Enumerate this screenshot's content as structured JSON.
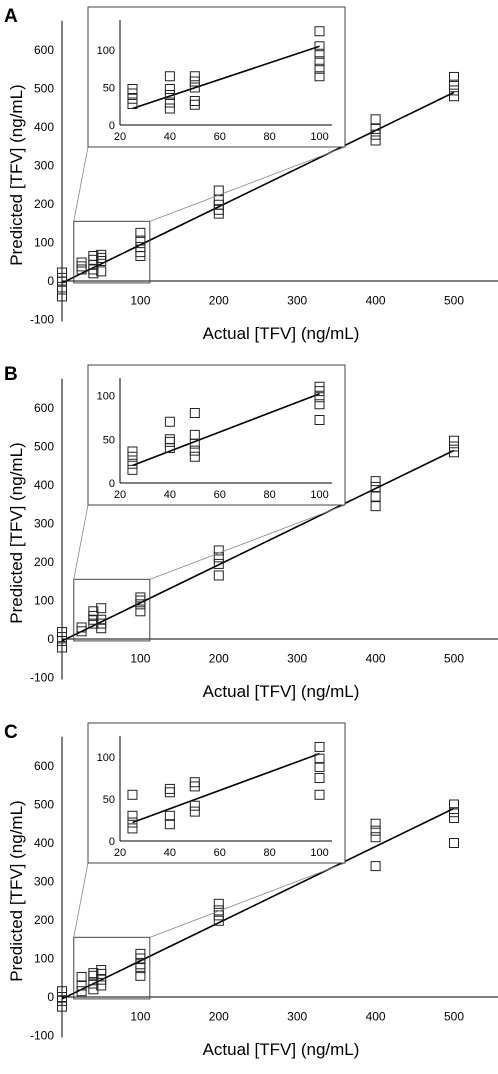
{
  "figure": {
    "panels": [
      "A",
      "B",
      "C"
    ]
  },
  "chart_data": [
    {
      "panel": "A",
      "type": "scatter",
      "xlabel": "Actual [TFV] (ng/mL)",
      "ylabel": "Predicted [TFV] (ng/mL)",
      "xlim": [
        -10,
        550
      ],
      "ylim": [
        -100,
        650
      ],
      "xticks": [
        100,
        200,
        300,
        400,
        500
      ],
      "yticks": [
        -100,
        0,
        100,
        200,
        300,
        400,
        500,
        600
      ],
      "fit_line": [
        [
          0,
          -5
        ],
        [
          500,
          490
        ]
      ],
      "points": [
        [
          0,
          22
        ],
        [
          0,
          8
        ],
        [
          0,
          -2
        ],
        [
          0,
          -22
        ],
        [
          0,
          -40
        ],
        [
          25,
          30
        ],
        [
          25,
          38
        ],
        [
          25,
          48
        ],
        [
          40,
          20
        ],
        [
          40,
          30
        ],
        [
          40,
          42
        ],
        [
          40,
          55
        ],
        [
          40,
          65
        ],
        [
          50,
          25
        ],
        [
          50,
          52
        ],
        [
          50,
          60
        ],
        [
          50,
          68
        ],
        [
          100,
          65
        ],
        [
          100,
          75
        ],
        [
          100,
          88
        ],
        [
          100,
          105
        ],
        [
          100,
          125
        ],
        [
          200,
          175
        ],
        [
          200,
          185
        ],
        [
          200,
          198
        ],
        [
          200,
          210
        ],
        [
          200,
          235
        ],
        [
          400,
          365
        ],
        [
          400,
          380
        ],
        [
          400,
          395
        ],
        [
          400,
          420
        ],
        [
          500,
          480
        ],
        [
          500,
          495
        ],
        [
          500,
          510
        ],
        [
          500,
          530
        ]
      ],
      "inset": {
        "xlim": [
          20,
          105
        ],
        "ylim": [
          0,
          140
        ],
        "xticks": [
          20,
          40,
          60,
          80,
          100
        ],
        "yticks": [
          0,
          50,
          100
        ],
        "fit_line": [
          [
            25,
            22
          ],
          [
            100,
            105
          ]
        ],
        "points": [
          [
            25,
            28
          ],
          [
            25,
            35
          ],
          [
            25,
            42
          ],
          [
            25,
            48
          ],
          [
            40,
            22
          ],
          [
            40,
            30
          ],
          [
            40,
            40
          ],
          [
            40,
            48
          ],
          [
            40,
            65
          ],
          [
            50,
            27
          ],
          [
            50,
            32
          ],
          [
            50,
            50
          ],
          [
            50,
            58
          ],
          [
            50,
            65
          ],
          [
            100,
            65
          ],
          [
            100,
            75
          ],
          [
            100,
            85
          ],
          [
            100,
            95
          ],
          [
            100,
            105
          ],
          [
            100,
            125
          ]
        ]
      }
    },
    {
      "panel": "B",
      "type": "scatter",
      "xlabel": "Actual [TFV] (ng/mL)",
      "ylabel": "Predicted [TFV] (ng/mL)",
      "xlim": [
        -10,
        550
      ],
      "ylim": [
        -100,
        650
      ],
      "xticks": [
        100,
        200,
        300,
        400,
        500
      ],
      "yticks": [
        -100,
        0,
        100,
        200,
        300,
        400,
        500,
        600
      ],
      "fit_line": [
        [
          0,
          -5
        ],
        [
          500,
          490
        ]
      ],
      "points": [
        [
          0,
          18
        ],
        [
          0,
          5
        ],
        [
          0,
          -5
        ],
        [
          0,
          -22
        ],
        [
          25,
          20
        ],
        [
          25,
          30
        ],
        [
          40,
          40
        ],
        [
          40,
          50
        ],
        [
          40,
          60
        ],
        [
          40,
          72
        ],
        [
          50,
          28
        ],
        [
          50,
          40
        ],
        [
          50,
          50
        ],
        [
          50,
          80
        ],
        [
          100,
          72
        ],
        [
          100,
          90
        ],
        [
          100,
          100
        ],
        [
          100,
          108
        ],
        [
          200,
          165
        ],
        [
          200,
          195
        ],
        [
          200,
          212
        ],
        [
          200,
          230
        ],
        [
          400,
          345
        ],
        [
          400,
          370
        ],
        [
          400,
          395
        ],
        [
          400,
          410
        ],
        [
          500,
          485
        ],
        [
          500,
          500
        ],
        [
          500,
          515
        ]
      ],
      "inset": {
        "xlim": [
          20,
          105
        ],
        "ylim": [
          0,
          120
        ],
        "xticks": [
          20,
          40,
          60,
          80,
          100
        ],
        "yticks": [
          0,
          50,
          100
        ],
        "fit_line": [
          [
            25,
            20
          ],
          [
            100,
            102
          ]
        ],
        "points": [
          [
            25,
            15
          ],
          [
            25,
            22
          ],
          [
            25,
            30
          ],
          [
            25,
            36
          ],
          [
            40,
            40
          ],
          [
            40,
            47
          ],
          [
            40,
            50
          ],
          [
            40,
            70
          ],
          [
            50,
            30
          ],
          [
            50,
            37
          ],
          [
            50,
            45
          ],
          [
            50,
            55
          ],
          [
            50,
            80
          ],
          [
            100,
            72
          ],
          [
            100,
            90
          ],
          [
            100,
            98
          ],
          [
            100,
            105
          ],
          [
            100,
            110
          ]
        ]
      }
    },
    {
      "panel": "C",
      "type": "scatter",
      "xlabel": "Actual [TFV] (ng/mL)",
      "ylabel": "Predicted [TFV] (ng/mL)",
      "xlim": [
        -10,
        550
      ],
      "ylim": [
        -100,
        650
      ],
      "xticks": [
        100,
        200,
        300,
        400,
        500
      ],
      "yticks": [
        -100,
        0,
        100,
        200,
        300,
        400,
        500,
        600
      ],
      "fit_line": [
        [
          0,
          -5
        ],
        [
          500,
          490
        ]
      ],
      "points": [
        [
          0,
          15
        ],
        [
          0,
          0
        ],
        [
          0,
          -10
        ],
        [
          0,
          -25
        ],
        [
          25,
          15
        ],
        [
          25,
          30
        ],
        [
          25,
          52
        ],
        [
          40,
          20
        ],
        [
          40,
          35
        ],
        [
          40,
          55
        ],
        [
          40,
          62
        ],
        [
          50,
          30
        ],
        [
          50,
          45
        ],
        [
          50,
          60
        ],
        [
          50,
          70
        ],
        [
          100,
          55
        ],
        [
          100,
          75
        ],
        [
          100,
          85
        ],
        [
          100,
          100
        ],
        [
          100,
          112
        ],
        [
          200,
          198
        ],
        [
          200,
          212
        ],
        [
          200,
          225
        ],
        [
          200,
          242
        ],
        [
          400,
          340
        ],
        [
          400,
          415
        ],
        [
          400,
          432
        ],
        [
          400,
          450
        ],
        [
          500,
          400
        ],
        [
          500,
          465
        ],
        [
          500,
          480
        ],
        [
          500,
          500
        ]
      ],
      "inset": {
        "xlim": [
          20,
          105
        ],
        "ylim": [
          0,
          125
        ],
        "xticks": [
          20,
          40,
          60,
          80,
          100
        ],
        "yticks": [
          0,
          50,
          100
        ],
        "fit_line": [
          [
            25,
            22
          ],
          [
            100,
            104
          ]
        ],
        "points": [
          [
            25,
            15
          ],
          [
            25,
            22
          ],
          [
            25,
            30
          ],
          [
            25,
            55
          ],
          [
            40,
            20
          ],
          [
            40,
            30
          ],
          [
            40,
            58
          ],
          [
            40,
            62
          ],
          [
            50,
            35
          ],
          [
            50,
            42
          ],
          [
            50,
            65
          ],
          [
            50,
            70
          ],
          [
            100,
            55
          ],
          [
            100,
            75
          ],
          [
            100,
            88
          ],
          [
            100,
            98
          ],
          [
            100,
            112
          ]
        ]
      }
    }
  ]
}
